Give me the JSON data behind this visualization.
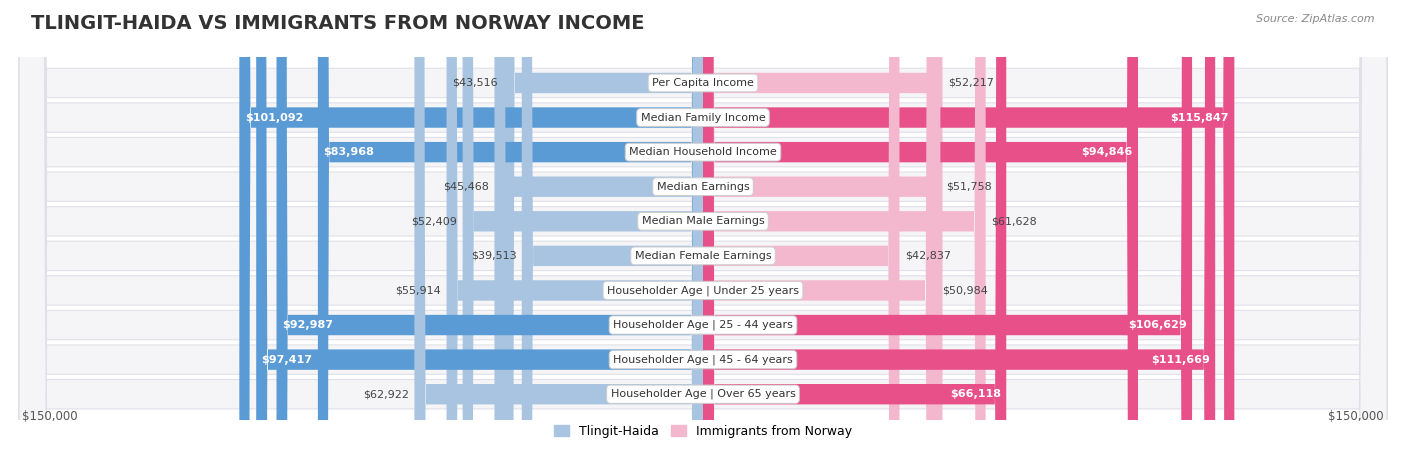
{
  "title": "TLINGIT-HAIDA VS IMMIGRANTS FROM NORWAY INCOME",
  "source": "Source: ZipAtlas.com",
  "categories": [
    "Per Capita Income",
    "Median Family Income",
    "Median Household Income",
    "Median Earnings",
    "Median Male Earnings",
    "Median Female Earnings",
    "Householder Age | Under 25 years",
    "Householder Age | 25 - 44 years",
    "Householder Age | 45 - 64 years",
    "Householder Age | Over 65 years"
  ],
  "tlingit_values": [
    43516,
    101092,
    83968,
    45468,
    52409,
    39513,
    55914,
    92987,
    97417,
    62922
  ],
  "norway_values": [
    52217,
    115847,
    94846,
    51758,
    61628,
    42837,
    50984,
    106629,
    111669,
    66118
  ],
  "tlingit_labels": [
    "$43,516",
    "$101,092",
    "$83,968",
    "$45,468",
    "$52,409",
    "$39,513",
    "$55,914",
    "$92,987",
    "$97,417",
    "$62,922"
  ],
  "norway_labels": [
    "$52,217",
    "$115,847",
    "$94,846",
    "$51,758",
    "$61,628",
    "$42,837",
    "$50,984",
    "$106,629",
    "$111,669",
    "$66,118"
  ],
  "tlingit_color_light": "#a8c4e0",
  "tlingit_color_dark": "#5b9bd5",
  "norway_color_light": "#f4b8ce",
  "norway_color_dark": "#e8508a",
  "max_value": 150000,
  "bar_height": 0.58,
  "row_bg_color": "#f5f5f7",
  "row_border_color": "#e0e0e8",
  "background_color": "#ffffff",
  "legend_tlingit": "Tlingit-Haida",
  "legend_norway": "Immigrants from Norway",
  "xlabel_left": "$150,000",
  "xlabel_right": "$150,000",
  "inside_threshold": 65000,
  "title_fontsize": 14,
  "label_fontsize": 8,
  "cat_fontsize": 8
}
